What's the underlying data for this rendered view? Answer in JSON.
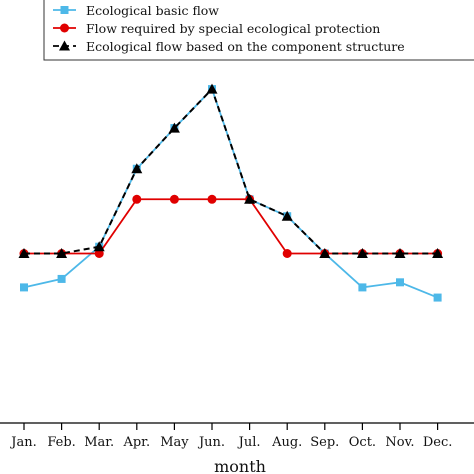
{
  "chart_data": {
    "type": "line",
    "categories": [
      "Jan.",
      "Feb.",
      "Mar.",
      "Apr.",
      "May",
      "Jun.",
      "Jul.",
      "Aug.",
      "Sep.",
      "Oct.",
      "Nov.",
      "Dec."
    ],
    "xlabel": "month",
    "ylabel": "",
    "ylim": [
      0,
      100
    ],
    "grid": false,
    "legend_position": "top-left",
    "series": [
      {
        "name": "Ecological basic flow",
        "color": "#4db8e8",
        "marker": "square",
        "line_style": "solid",
        "values": [
          40,
          42.5,
          52,
          75,
          87,
          98.5,
          66,
          61,
          50,
          40,
          41.5,
          37
        ]
      },
      {
        "name": "Flow required by special ecological protection",
        "color": "#e00000",
        "marker": "circle",
        "line_style": "solid",
        "values": [
          50,
          50,
          50,
          66,
          66,
          66,
          66,
          50,
          50,
          50,
          50,
          50
        ]
      },
      {
        "name": "Ecological flow based on the component structure",
        "color": "#000000",
        "marker": "triangle",
        "line_style": "dashed",
        "values": [
          50,
          50,
          52,
          75,
          87,
          98.5,
          66,
          61,
          50,
          50,
          50,
          50
        ]
      }
    ]
  }
}
